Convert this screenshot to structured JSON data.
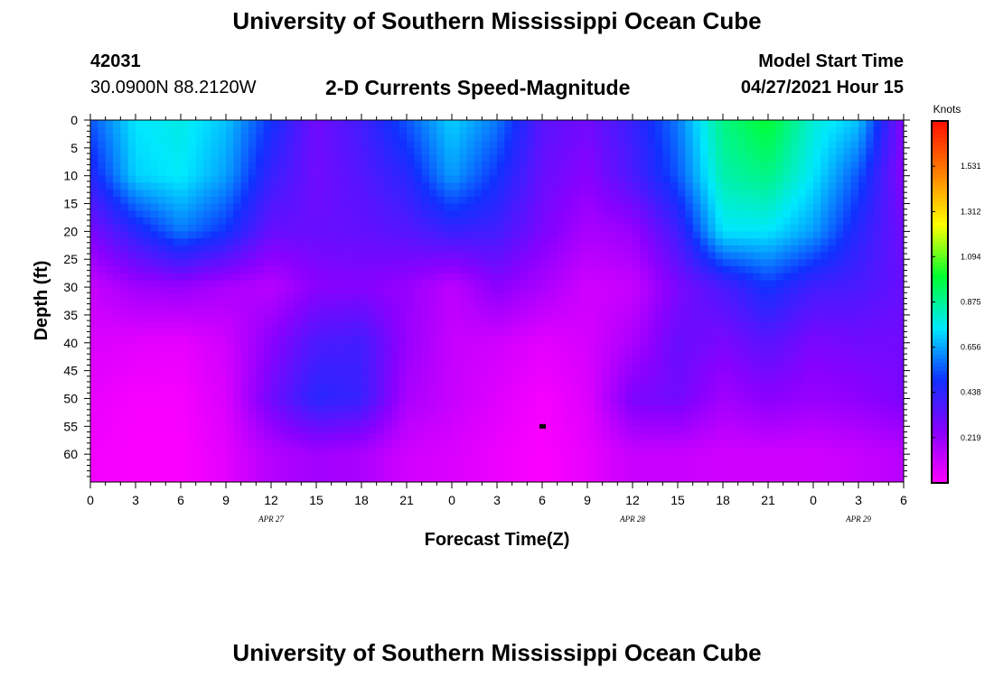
{
  "header": {
    "title": "University of Southern Mississippi Ocean Cube",
    "station_id": "42031",
    "coordinates": "30.0900N  88.2120W",
    "plot_title": "2-D Currents Speed-Magnitude",
    "model_start_label": "Model Start Time",
    "model_start_time": "04/27/2021 Hour 15"
  },
  "footer": {
    "title": "University of Southern Mississippi Ocean Cube"
  },
  "chart_data": {
    "type": "heatmap",
    "title": "2-D Currents Speed-Magnitude",
    "xlabel": "Forecast Time(Z)",
    "ylabel": "Depth (ft)",
    "x_ticks": [
      "0",
      "3",
      "6",
      "9",
      "12",
      "15",
      "18",
      "21",
      "0",
      "3",
      "6",
      "9",
      "12",
      "15",
      "18",
      "21",
      "0",
      "3",
      "6"
    ],
    "x_date_labels": [
      {
        "label": "APR  27",
        "hour_index": 12
      },
      {
        "label": "APR  28",
        "hour_index": 36
      },
      {
        "label": "APR  29",
        "hour_index": 51
      }
    ],
    "x_range_hours": [
      0,
      54
    ],
    "y_ticks": [
      0,
      5,
      10,
      15,
      20,
      25,
      30,
      35,
      40,
      45,
      50,
      55,
      60
    ],
    "y_range_ft": [
      0,
      65
    ],
    "y_inverted": true,
    "colorbar": {
      "unit": "Knots",
      "ticks": [
        "1.531",
        "1.312",
        "1.094",
        "0.875",
        "0.656",
        "0.438",
        "0.219"
      ],
      "tick_values": [
        1.531,
        1.312,
        1.094,
        0.875,
        0.656,
        0.438,
        0.219
      ],
      "range": [
        0,
        1.75
      ],
      "colors": [
        "#ff00ff",
        "#8a00ff",
        "#1030ff",
        "#00e8ff",
        "#00ff30",
        "#ffff00",
        "#ff8000",
        "#ff1000"
      ]
    },
    "marker": {
      "hour": 30,
      "depth_ft": 55
    },
    "depths_ft": [
      0,
      10,
      20,
      30,
      40,
      50,
      60
    ],
    "times_h": [
      0,
      3,
      6,
      9,
      12,
      15,
      18,
      21,
      24,
      27,
      30,
      33,
      36,
      39,
      42,
      45,
      48,
      51,
      54
    ],
    "speed_knots": [
      [
        0.55,
        0.75,
        0.78,
        0.7,
        0.5,
        0.3,
        0.4,
        0.55,
        0.72,
        0.6,
        0.35,
        0.3,
        0.42,
        0.6,
        0.9,
        1.0,
        0.8,
        0.7,
        0.25
      ],
      [
        0.45,
        0.72,
        0.76,
        0.65,
        0.42,
        0.3,
        0.36,
        0.45,
        0.65,
        0.5,
        0.32,
        0.25,
        0.38,
        0.55,
        0.85,
        0.9,
        0.75,
        0.55,
        0.25
      ],
      [
        0.28,
        0.45,
        0.6,
        0.5,
        0.32,
        0.32,
        0.33,
        0.36,
        0.42,
        0.4,
        0.28,
        0.18,
        0.22,
        0.4,
        0.75,
        0.75,
        0.65,
        0.45,
        0.3
      ],
      [
        0.12,
        0.2,
        0.22,
        0.18,
        0.15,
        0.25,
        0.26,
        0.22,
        0.14,
        0.25,
        0.18,
        0.1,
        0.12,
        0.28,
        0.38,
        0.5,
        0.4,
        0.38,
        0.32
      ],
      [
        0.08,
        0.06,
        0.05,
        0.1,
        0.25,
        0.38,
        0.4,
        0.22,
        0.12,
        0.1,
        0.06,
        0.09,
        0.18,
        0.32,
        0.28,
        0.35,
        0.28,
        0.3,
        0.3
      ],
      [
        0.05,
        0.02,
        0.02,
        0.08,
        0.3,
        0.45,
        0.42,
        0.18,
        0.12,
        0.07,
        0.02,
        0.07,
        0.28,
        0.3,
        0.2,
        0.25,
        0.22,
        0.24,
        0.28
      ],
      [
        0.03,
        0.01,
        0.01,
        0.06,
        0.16,
        0.2,
        0.18,
        0.1,
        0.08,
        0.04,
        0.01,
        0.05,
        0.12,
        0.12,
        0.1,
        0.1,
        0.1,
        0.12,
        0.15
      ]
    ]
  }
}
